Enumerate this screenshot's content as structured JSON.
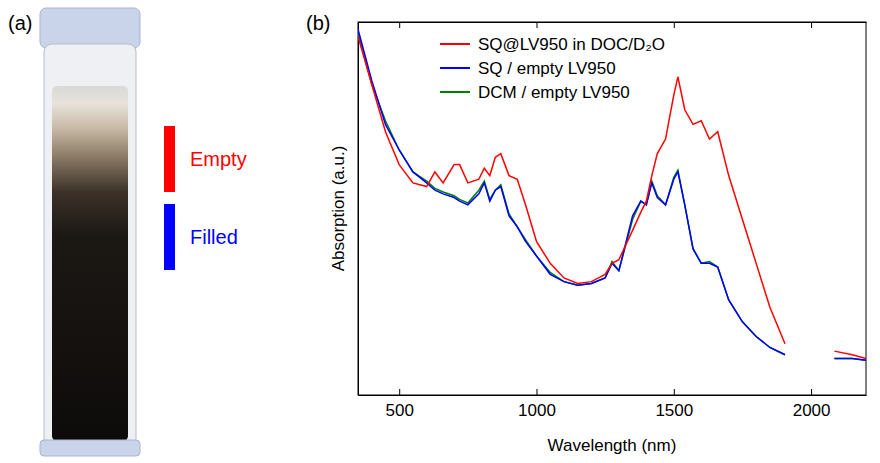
{
  "panel_a": {
    "label": "(a)",
    "labels": [
      {
        "text": "Empty",
        "color": "#ff0000"
      },
      {
        "text": "Filled",
        "color": "#0000ff"
      }
    ]
  },
  "chart_data": {
    "type": "line",
    "panel_label": "(b)",
    "x_label": "Wavelength (nm)",
    "y_label": "Absorption (a.u.)",
    "xlim": [
      350,
      2200
    ],
    "xticks": [
      500,
      1000,
      1500,
      2000
    ],
    "ylim": [
      0,
      1.02
    ],
    "yticks": [],
    "tick_labels": "x",
    "grid": false,
    "legend": "upper left",
    "x": [
      350,
      400,
      450,
      500,
      550,
      600,
      630,
      660,
      700,
      720,
      750,
      790,
      810,
      830,
      850,
      870,
      900,
      930,
      960,
      1000,
      1050,
      1100,
      1150,
      1200,
      1250,
      1275,
      1300,
      1350,
      1380,
      1400,
      1420,
      1440,
      1470,
      1500,
      1515,
      1540,
      1570,
      1600,
      1630,
      1660,
      1700,
      1750,
      1800,
      1850,
      1905,
      2000,
      2085,
      2150,
      2200
    ],
    "series": [
      {
        "name": "SQ@LV950 in DOC/D₂O",
        "color": "#ff0000",
        "values": [
          0.98,
          0.85,
          0.72,
          0.63,
          0.58,
          0.57,
          0.61,
          0.58,
          0.63,
          0.63,
          0.58,
          0.59,
          0.62,
          0.6,
          0.65,
          0.66,
          0.6,
          0.59,
          0.52,
          0.42,
          0.36,
          0.32,
          0.305,
          0.31,
          0.33,
          0.36,
          0.37,
          0.45,
          0.5,
          0.53,
          0.6,
          0.66,
          0.7,
          0.82,
          0.87,
          0.78,
          0.74,
          0.75,
          0.7,
          0.72,
          0.6,
          0.48,
          0.36,
          0.24,
          0.14,
          null,
          0.12,
          0.11,
          0.1
        ]
      },
      {
        "name": "SQ / empty LV950",
        "color": "#0000ff",
        "values": [
          1.0,
          0.86,
          0.74,
          0.67,
          0.61,
          0.58,
          0.56,
          0.55,
          0.54,
          0.53,
          0.52,
          0.55,
          0.58,
          0.53,
          0.56,
          0.57,
          0.49,
          0.46,
          0.42,
          0.38,
          0.33,
          0.31,
          0.3,
          0.305,
          0.32,
          0.36,
          0.34,
          0.49,
          0.53,
          0.52,
          0.58,
          0.54,
          0.52,
          0.59,
          0.61,
          0.52,
          0.4,
          0.36,
          0.36,
          0.35,
          0.26,
          0.2,
          0.16,
          0.13,
          0.11,
          null,
          0.1,
          0.1,
          0.095
        ]
      },
      {
        "name": "DCM / empty LV950",
        "color": "#008000",
        "values": [
          0.99,
          0.85,
          0.75,
          0.67,
          0.61,
          0.585,
          0.565,
          0.555,
          0.545,
          0.535,
          0.525,
          0.56,
          0.585,
          0.535,
          0.56,
          0.575,
          0.495,
          0.46,
          0.425,
          0.38,
          0.335,
          0.31,
          0.3,
          0.305,
          0.32,
          0.365,
          0.34,
          0.48,
          0.53,
          0.52,
          0.585,
          0.545,
          0.52,
          0.595,
          0.615,
          0.52,
          0.4,
          0.36,
          0.365,
          0.35,
          0.26,
          0.2,
          0.16,
          0.13,
          0.11,
          null,
          0.1,
          0.1,
          0.095
        ]
      }
    ]
  }
}
